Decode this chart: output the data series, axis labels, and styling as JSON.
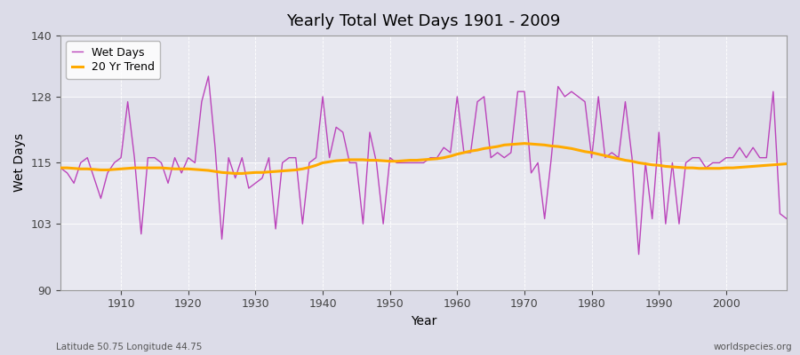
{
  "title": "Yearly Total Wet Days 1901 - 2009",
  "xlabel": "Year",
  "ylabel": "Wet Days",
  "xlim": [
    1901,
    2009
  ],
  "ylim": [
    90,
    140
  ],
  "yticks": [
    90,
    103,
    115,
    128,
    140
  ],
  "xticks": [
    1910,
    1920,
    1930,
    1940,
    1950,
    1960,
    1970,
    1980,
    1990,
    2000
  ],
  "bg_outer_color": "#dcdce8",
  "bg_inner_color": "#e8e8f0",
  "bg_band_color": "#d8d8e4",
  "wet_days_color": "#bb44bb",
  "trend_color": "#ffaa00",
  "wet_days_label": "Wet Days",
  "trend_label": "20 Yr Trend",
  "footer_left": "Latitude 50.75 Longitude 44.75",
  "footer_right": "worldspecies.org",
  "years": [
    1901,
    1902,
    1903,
    1904,
    1905,
    1906,
    1907,
    1908,
    1909,
    1910,
    1911,
    1912,
    1913,
    1914,
    1915,
    1916,
    1917,
    1918,
    1919,
    1920,
    1921,
    1922,
    1923,
    1924,
    1925,
    1926,
    1927,
    1928,
    1929,
    1930,
    1931,
    1932,
    1933,
    1934,
    1935,
    1936,
    1937,
    1938,
    1939,
    1940,
    1941,
    1942,
    1943,
    1944,
    1945,
    1946,
    1947,
    1948,
    1949,
    1950,
    1951,
    1952,
    1953,
    1954,
    1955,
    1956,
    1957,
    1958,
    1959,
    1960,
    1961,
    1962,
    1963,
    1964,
    1965,
    1966,
    1967,
    1968,
    1969,
    1970,
    1971,
    1972,
    1973,
    1974,
    1975,
    1976,
    1977,
    1978,
    1979,
    1980,
    1981,
    1982,
    1983,
    1984,
    1985,
    1986,
    1987,
    1988,
    1989,
    1990,
    1991,
    1992,
    1993,
    1994,
    1995,
    1996,
    1997,
    1998,
    1999,
    2000,
    2001,
    2002,
    2003,
    2004,
    2005,
    2006,
    2007,
    2008,
    2009
  ],
  "wet_days": [
    114,
    113,
    111,
    115,
    116,
    112,
    108,
    113,
    115,
    116,
    127,
    116,
    101,
    116,
    116,
    115,
    111,
    116,
    113,
    116,
    115,
    127,
    132,
    118,
    100,
    116,
    112,
    116,
    110,
    111,
    112,
    116,
    102,
    115,
    116,
    116,
    103,
    115,
    116,
    128,
    116,
    122,
    121,
    115,
    115,
    103,
    121,
    115,
    103,
    116,
    115,
    115,
    115,
    115,
    115,
    116,
    116,
    118,
    117,
    128,
    117,
    117,
    127,
    128,
    116,
    117,
    116,
    117,
    129,
    129,
    113,
    115,
    104,
    116,
    130,
    128,
    129,
    128,
    127,
    116,
    128,
    116,
    117,
    116,
    127,
    116,
    97,
    115,
    104,
    121,
    103,
    115,
    103,
    115,
    116,
    116,
    114,
    115,
    115,
    116,
    116,
    118,
    116,
    118,
    116,
    116,
    129,
    105,
    104
  ],
  "trend": [
    114.0,
    114.0,
    113.9,
    113.8,
    113.8,
    113.7,
    113.6,
    113.6,
    113.7,
    113.8,
    113.9,
    114.0,
    114.0,
    114.0,
    114.0,
    114.0,
    113.9,
    113.8,
    113.8,
    113.8,
    113.7,
    113.6,
    113.5,
    113.3,
    113.1,
    113.0,
    112.9,
    112.9,
    113.0,
    113.1,
    113.1,
    113.2,
    113.3,
    113.4,
    113.5,
    113.6,
    113.8,
    114.1,
    114.5,
    115.0,
    115.2,
    115.4,
    115.5,
    115.6,
    115.6,
    115.6,
    115.5,
    115.5,
    115.4,
    115.3,
    115.3,
    115.4,
    115.5,
    115.5,
    115.6,
    115.7,
    115.8,
    116.0,
    116.3,
    116.7,
    117.0,
    117.3,
    117.5,
    117.8,
    118.0,
    118.2,
    118.5,
    118.6,
    118.7,
    118.8,
    118.7,
    118.6,
    118.5,
    118.3,
    118.2,
    118.0,
    117.8,
    117.5,
    117.2,
    117.0,
    116.7,
    116.4,
    116.1,
    115.8,
    115.5,
    115.3,
    115.0,
    114.8,
    114.6,
    114.5,
    114.3,
    114.2,
    114.1,
    114.0,
    114.0,
    113.9,
    113.9,
    113.9,
    113.9,
    114.0,
    114.0,
    114.1,
    114.2,
    114.3,
    114.4,
    114.5,
    114.6,
    114.7,
    114.8
  ]
}
